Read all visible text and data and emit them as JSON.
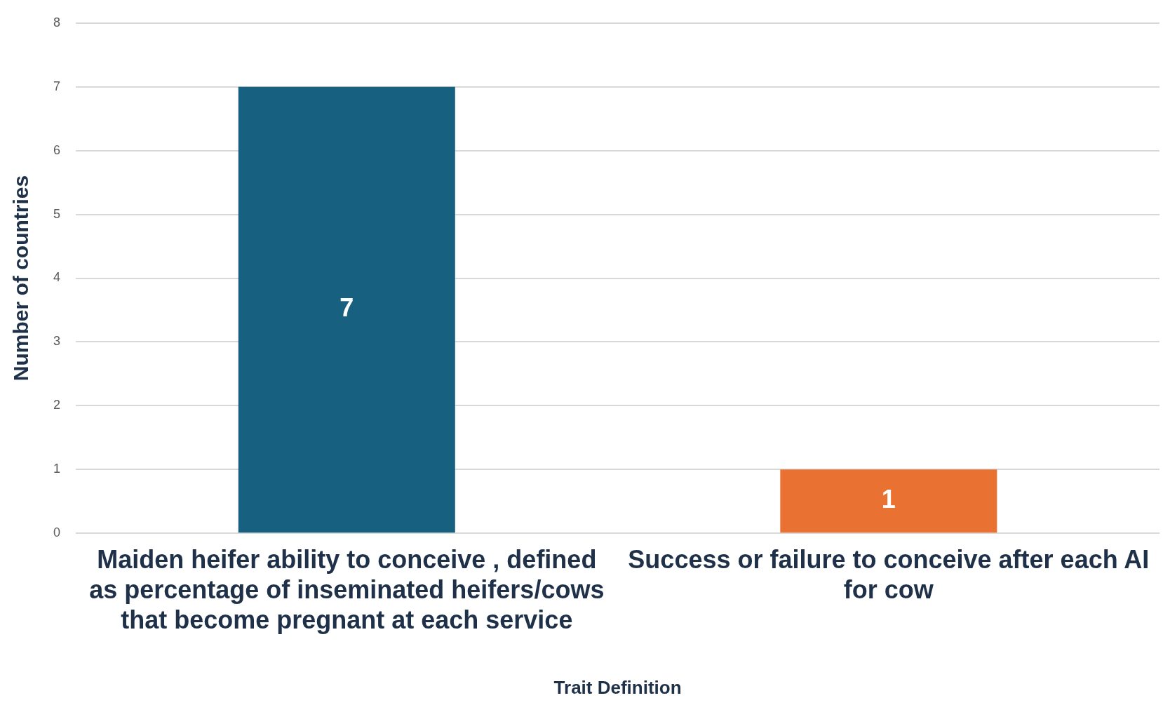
{
  "chart_data": {
    "type": "bar",
    "xlabel": "Trait Definition",
    "ylabel": "Number of countries",
    "categories": [
      "Maiden heifer ability to conceive , defined as percentage of inseminated heifers/cows that become pregnant at each service",
      "Success or failure to conceive after each AI for cow"
    ],
    "values": [
      7,
      1
    ],
    "colors": [
      "#17607f",
      "#e97132"
    ],
    "ylim": [
      0,
      8
    ],
    "yticks": [
      0,
      1,
      2,
      3,
      4,
      5,
      6,
      7,
      8
    ],
    "grid": "y",
    "data_labels": true,
    "legend": false
  }
}
